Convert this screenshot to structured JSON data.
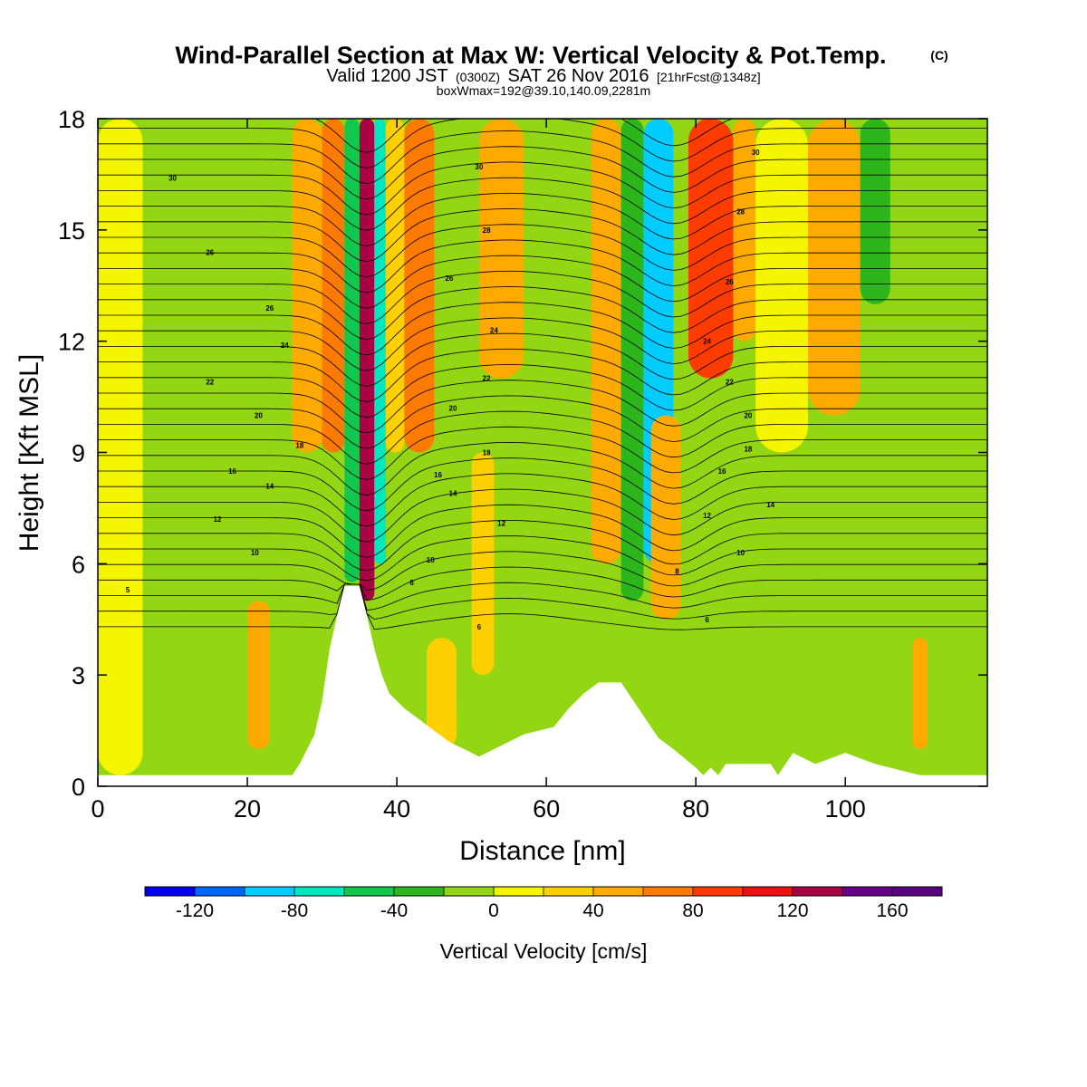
{
  "chart_data": {
    "type": "heatmap",
    "title": "Wind-Parallel Section at Max W: Vertical Velocity & Pot.Temp.",
    "title_mark": "(C)",
    "subtitle_parts": [
      "Valid 1200 JST",
      "(0300Z)",
      "SAT 26 Nov 2016",
      "[21hrFcst@1348z]"
    ],
    "subtitle2": "boxWmax=192@39.10,140.09,2281m",
    "xlabel": "Distance [nm]",
    "ylabel": "Height [Kft MSL]",
    "xlim": [
      0,
      119
    ],
    "ylim": [
      0,
      18
    ],
    "x_ticks": [
      0,
      20,
      40,
      60,
      80,
      100
    ],
    "x_tick_labels": [
      "0",
      "20",
      "40",
      "60",
      "80",
      "100"
    ],
    "y_ticks": [
      0,
      3,
      6,
      9,
      12,
      15,
      18
    ],
    "y_tick_labels": [
      "0",
      "3",
      "6",
      "9",
      "12",
      "15",
      "18"
    ],
    "colorbar": {
      "label": "Vertical Velocity [cm/s]",
      "min": -140,
      "max": 180,
      "step": 20,
      "tick_values": [
        -120,
        -80,
        -40,
        0,
        40,
        80,
        120,
        160
      ],
      "tick_labels": [
        "-120",
        "-80",
        "-40",
        "0",
        "40",
        "80",
        "120",
        "160"
      ],
      "colors": [
        "#0000ee",
        "#0066ff",
        "#00ccff",
        "#00e8c0",
        "#11c84f",
        "#2db51c",
        "#93d614",
        "#f5f500",
        "#ffd000",
        "#ffaa00",
        "#ff7a00",
        "#ff3c00",
        "#ee1111",
        "#aa0044",
        "#660088",
        "#5a0080"
      ]
    },
    "vertical_velocity_cells": [
      {
        "x": [
          0,
          6
        ],
        "y": [
          0.3,
          18
        ],
        "w": 5
      },
      {
        "x": [
          6,
          10
        ],
        "y": [
          0.3,
          17
        ],
        "w": -10
      },
      {
        "x": [
          12,
          16
        ],
        "y": [
          0.5,
          17
        ],
        "w": -15
      },
      {
        "x": [
          20,
          23
        ],
        "y": [
          1,
          5
        ],
        "w": 40
      },
      {
        "x": [
          20,
          26
        ],
        "y": [
          5,
          18
        ],
        "w": -15
      },
      {
        "x": [
          26,
          30
        ],
        "y": [
          9,
          18
        ],
        "w": 40
      },
      {
        "x": [
          30,
          33
        ],
        "y": [
          9,
          18
        ],
        "w": 60
      },
      {
        "x": [
          33,
          35
        ],
        "y": [
          5.5,
          18
        ],
        "w": -60
      },
      {
        "x": [
          35,
          37
        ],
        "y": [
          5,
          18
        ],
        "w": 130
      },
      {
        "x": [
          37,
          38.5
        ],
        "y": [
          6,
          18
        ],
        "w": -80
      },
      {
        "x": [
          38.5,
          41
        ],
        "y": [
          9,
          18
        ],
        "w": 30
      },
      {
        "x": [
          41,
          45
        ],
        "y": [
          9,
          18
        ],
        "w": 60
      },
      {
        "x": [
          44,
          48
        ],
        "y": [
          1,
          4
        ],
        "w": 30
      },
      {
        "x": [
          48,
          50
        ],
        "y": [
          2,
          18
        ],
        "w": -20
      },
      {
        "x": [
          50,
          53
        ],
        "y": [
          3,
          9
        ],
        "w": 30
      },
      {
        "x": [
          51,
          57
        ],
        "y": [
          11,
          18
        ],
        "w": 40
      },
      {
        "x": [
          57,
          66
        ],
        "y": [
          5,
          18
        ],
        "w": -20
      },
      {
        "x": [
          66,
          70
        ],
        "y": [
          6,
          18
        ],
        "w": 50
      },
      {
        "x": [
          70,
          73
        ],
        "y": [
          5,
          18
        ],
        "w": -40
      },
      {
        "x": [
          73,
          77
        ],
        "y": [
          6,
          18
        ],
        "w": -100
      },
      {
        "x": [
          74,
          78
        ],
        "y": [
          4.5,
          10
        ],
        "w": 40
      },
      {
        "x": [
          79,
          85
        ],
        "y": [
          11,
          18
        ],
        "w": 80
      },
      {
        "x": [
          80,
          83
        ],
        "y": [
          15,
          18
        ],
        "w": 90
      },
      {
        "x": [
          85,
          88
        ],
        "y": [
          12,
          18
        ],
        "w": 40
      },
      {
        "x": [
          88,
          95
        ],
        "y": [
          9,
          18
        ],
        "w": 5
      },
      {
        "x": [
          95,
          102
        ],
        "y": [
          10,
          18
        ],
        "w": 40
      },
      {
        "x": [
          102,
          106
        ],
        "y": [
          13,
          18
        ],
        "w": -40
      },
      {
        "x": [
          109,
          111
        ],
        "y": [
          1,
          4
        ],
        "w": 50
      },
      {
        "x": [
          112,
          119
        ],
        "y": [
          0.3,
          18
        ],
        "w": -10
      }
    ],
    "terrain_profile": [
      [
        0,
        0.3
      ],
      [
        26,
        0.3
      ],
      [
        27,
        0.6
      ],
      [
        28,
        1
      ],
      [
        29,
        1.4
      ],
      [
        30,
        2.3
      ],
      [
        31,
        3.7
      ],
      [
        32,
        4.6
      ],
      [
        33,
        5.4
      ],
      [
        35,
        5.4
      ],
      [
        36,
        4.6
      ],
      [
        37,
        3.7
      ],
      [
        38,
        3
      ],
      [
        39,
        2.5
      ],
      [
        41,
        2.1
      ],
      [
        43,
        1.8
      ],
      [
        45,
        1.5
      ],
      [
        47,
        1.2
      ],
      [
        49,
        1
      ],
      [
        51,
        0.8
      ],
      [
        53,
        1
      ],
      [
        55,
        1.2
      ],
      [
        57,
        1.4
      ],
      [
        59,
        1.5
      ],
      [
        61,
        1.6
      ],
      [
        63,
        2.1
      ],
      [
        65,
        2.5
      ],
      [
        67,
        2.8
      ],
      [
        70,
        2.8
      ],
      [
        71,
        2.5
      ],
      [
        73,
        1.9
      ],
      [
        75,
        1.3
      ],
      [
        77,
        1
      ],
      [
        80,
        0.5
      ],
      [
        81,
        0.3
      ],
      [
        82,
        0.5
      ],
      [
        83,
        0.3
      ],
      [
        84,
        0.6
      ],
      [
        90,
        0.6
      ],
      [
        91,
        0.3
      ],
      [
        93,
        0.9
      ],
      [
        96,
        0.6
      ],
      [
        100,
        0.9
      ],
      [
        104,
        0.6
      ],
      [
        108,
        0.4
      ],
      [
        110,
        0.3
      ],
      [
        119,
        0.3
      ]
    ],
    "pot_temp_contour_labels": [
      {
        "x": 10,
        "y": 16.4,
        "text": "30"
      },
      {
        "x": 15,
        "y": 14.4,
        "text": "26"
      },
      {
        "x": 23,
        "y": 12.9,
        "text": "26"
      },
      {
        "x": 25,
        "y": 11.9,
        "text": "24"
      },
      {
        "x": 15,
        "y": 10.9,
        "text": "22"
      },
      {
        "x": 21.5,
        "y": 10,
        "text": "20"
      },
      {
        "x": 27,
        "y": 9.2,
        "text": "18"
      },
      {
        "x": 18,
        "y": 8.5,
        "text": "16"
      },
      {
        "x": 23,
        "y": 8.1,
        "text": "14"
      },
      {
        "x": 16,
        "y": 7.2,
        "text": "12"
      },
      {
        "x": 21,
        "y": 6.3,
        "text": "10"
      },
      {
        "x": 4,
        "y": 5.3,
        "text": "5"
      },
      {
        "x": 51,
        "y": 16.7,
        "text": "30"
      },
      {
        "x": 52,
        "y": 15,
        "text": "28"
      },
      {
        "x": 47,
        "y": 13.7,
        "text": "26"
      },
      {
        "x": 53,
        "y": 12.3,
        "text": "24"
      },
      {
        "x": 52,
        "y": 11,
        "text": "22"
      },
      {
        "x": 47.5,
        "y": 10.2,
        "text": "20"
      },
      {
        "x": 52,
        "y": 9,
        "text": "18"
      },
      {
        "x": 45.5,
        "y": 8.4,
        "text": "16"
      },
      {
        "x": 47.5,
        "y": 7.9,
        "text": "14"
      },
      {
        "x": 54,
        "y": 7.1,
        "text": "12"
      },
      {
        "x": 44.5,
        "y": 6.1,
        "text": "10"
      },
      {
        "x": 42,
        "y": 5.5,
        "text": "8"
      },
      {
        "x": 51,
        "y": 4.3,
        "text": "6"
      },
      {
        "x": 88,
        "y": 17.1,
        "text": "30"
      },
      {
        "x": 86,
        "y": 15.5,
        "text": "28"
      },
      {
        "x": 84.5,
        "y": 13.6,
        "text": "26"
      },
      {
        "x": 81.5,
        "y": 12,
        "text": "24"
      },
      {
        "x": 84.5,
        "y": 10.9,
        "text": "22"
      },
      {
        "x": 87,
        "y": 10,
        "text": "20"
      },
      {
        "x": 87,
        "y": 9.1,
        "text": "18"
      },
      {
        "x": 83.5,
        "y": 8.5,
        "text": "16"
      },
      {
        "x": 90,
        "y": 7.6,
        "text": "14"
      },
      {
        "x": 81.5,
        "y": 7.3,
        "text": "12"
      },
      {
        "x": 86,
        "y": 6.3,
        "text": "10"
      },
      {
        "x": 77.5,
        "y": 5.8,
        "text": "8"
      },
      {
        "x": 81.5,
        "y": 4.5,
        "text": "6"
      }
    ]
  }
}
